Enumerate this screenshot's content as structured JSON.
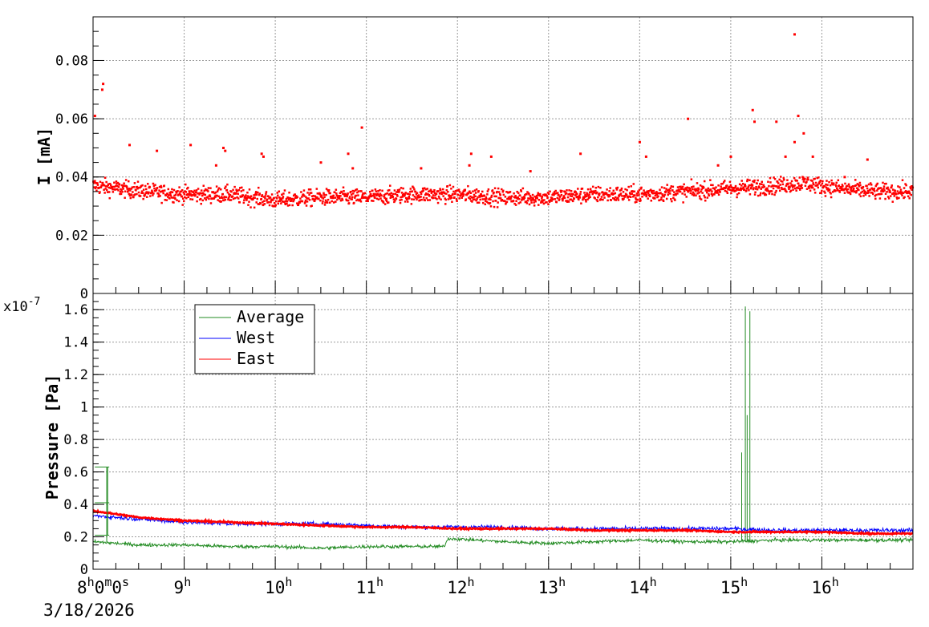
{
  "colors": {
    "current": "#ff0000",
    "average": "#228b22",
    "west": "#0000ff",
    "east": "#ff0000",
    "grid": "#9a9a9a",
    "frame": "#000000"
  },
  "chart_data": [
    {
      "id": "current",
      "type": "scatter",
      "ylabel": "I [mA]",
      "xlim": [
        8.0,
        17.0
      ],
      "ylim": [
        0,
        0.095
      ],
      "yticks": [
        0,
        0.02,
        0.04,
        0.06,
        0.08
      ],
      "ytick_labels": [
        "0",
        "0.02",
        "0.04",
        "0.06",
        "0.08"
      ],
      "grid": true,
      "baseline_points": [
        [
          8.0,
          0.037
        ],
        [
          8.3,
          0.036
        ],
        [
          8.6,
          0.035
        ],
        [
          9.0,
          0.034
        ],
        [
          9.5,
          0.034
        ],
        [
          10.0,
          0.032
        ],
        [
          10.5,
          0.033
        ],
        [
          11.0,
          0.033
        ],
        [
          11.5,
          0.034
        ],
        [
          12.0,
          0.034
        ],
        [
          12.5,
          0.033
        ],
        [
          13.0,
          0.033
        ],
        [
          13.5,
          0.034
        ],
        [
          14.0,
          0.034
        ],
        [
          14.5,
          0.035
        ],
        [
          15.0,
          0.036
        ],
        [
          15.5,
          0.037
        ],
        [
          15.8,
          0.038
        ],
        [
          16.2,
          0.036
        ],
        [
          16.6,
          0.035
        ],
        [
          17.0,
          0.035
        ]
      ],
      "outliers": [
        [
          8.02,
          0.061
        ],
        [
          8.1,
          0.07
        ],
        [
          8.11,
          0.072
        ],
        [
          8.4,
          0.051
        ],
        [
          8.7,
          0.049
        ],
        [
          9.07,
          0.051
        ],
        [
          9.35,
          0.044
        ],
        [
          9.43,
          0.05
        ],
        [
          9.45,
          0.049
        ],
        [
          9.85,
          0.048
        ],
        [
          9.87,
          0.047
        ],
        [
          10.5,
          0.045
        ],
        [
          10.8,
          0.048
        ],
        [
          10.85,
          0.043
        ],
        [
          10.95,
          0.057
        ],
        [
          11.6,
          0.043
        ],
        [
          12.15,
          0.048
        ],
        [
          12.13,
          0.044
        ],
        [
          12.37,
          0.047
        ],
        [
          12.8,
          0.042
        ],
        [
          13.35,
          0.048
        ],
        [
          14.0,
          0.052
        ],
        [
          14.07,
          0.047
        ],
        [
          14.53,
          0.06
        ],
        [
          14.86,
          0.044
        ],
        [
          15.0,
          0.047
        ],
        [
          15.24,
          0.063
        ],
        [
          15.26,
          0.059
        ],
        [
          15.5,
          0.059
        ],
        [
          15.6,
          0.047
        ],
        [
          15.7,
          0.089
        ],
        [
          15.7,
          0.052
        ],
        [
          15.74,
          0.061
        ],
        [
          15.8,
          0.055
        ],
        [
          15.9,
          0.047
        ],
        [
          16.5,
          0.046
        ],
        [
          16.25,
          0.04
        ]
      ]
    },
    {
      "id": "pressure",
      "type": "line",
      "ylabel": "Pressure [Pa]",
      "exponent_label": "x10",
      "exponent_power": "-7",
      "xlim": [
        8.0,
        17.0
      ],
      "ylim": [
        0,
        1.7
      ],
      "yticks": [
        0,
        0.2,
        0.4,
        0.6,
        0.8,
        1.0,
        1.2,
        1.4,
        1.6
      ],
      "ytick_labels": [
        "0",
        "0.2",
        "0.4",
        "0.6",
        "0.8",
        "1",
        "1.2",
        "1.4",
        "1.6"
      ],
      "grid": true,
      "legend_position": "top-left",
      "series": [
        {
          "name": "Average",
          "color": "#228b22",
          "points": [
            [
              8.0,
              0.17
            ],
            [
              8.5,
              0.15
            ],
            [
              9.0,
              0.15
            ],
            [
              9.5,
              0.14
            ],
            [
              10.0,
              0.14
            ],
            [
              10.5,
              0.13
            ],
            [
              11.0,
              0.14
            ],
            [
              11.5,
              0.14
            ],
            [
              11.85,
              0.14
            ],
            [
              11.9,
              0.19
            ],
            [
              12.5,
              0.17
            ],
            [
              13.0,
              0.16
            ],
            [
              13.5,
              0.17
            ],
            [
              14.0,
              0.18
            ],
            [
              14.5,
              0.17
            ],
            [
              15.0,
              0.17
            ],
            [
              15.5,
              0.18
            ],
            [
              16.0,
              0.18
            ],
            [
              16.5,
              0.18
            ],
            [
              17.0,
              0.18
            ]
          ],
          "spikes": [
            [
              8.15,
              0.63
            ],
            [
              15.12,
              0.72
            ],
            [
              15.16,
              1.62
            ],
            [
              15.18,
              0.95
            ],
            [
              15.21,
              1.59
            ]
          ]
        },
        {
          "name": "West",
          "color": "#0000ff",
          "points": [
            [
              8.0,
              0.33
            ],
            [
              8.5,
              0.31
            ],
            [
              9.0,
              0.29
            ],
            [
              9.5,
              0.28
            ],
            [
              10.0,
              0.28
            ],
            [
              10.5,
              0.28
            ],
            [
              11.0,
              0.27
            ],
            [
              11.5,
              0.26
            ],
            [
              12.0,
              0.26
            ],
            [
              12.5,
              0.26
            ],
            [
              13.0,
              0.25
            ],
            [
              13.5,
              0.25
            ],
            [
              14.0,
              0.25
            ],
            [
              14.5,
              0.25
            ],
            [
              15.0,
              0.25
            ],
            [
              15.5,
              0.24
            ],
            [
              16.0,
              0.24
            ],
            [
              16.5,
              0.24
            ],
            [
              17.0,
              0.24
            ]
          ]
        },
        {
          "name": "East",
          "color": "#ff0000",
          "points": [
            [
              8.0,
              0.36
            ],
            [
              8.5,
              0.32
            ],
            [
              9.0,
              0.3
            ],
            [
              9.5,
              0.29
            ],
            [
              10.0,
              0.28
            ],
            [
              10.5,
              0.27
            ],
            [
              11.0,
              0.26
            ],
            [
              11.5,
              0.26
            ],
            [
              12.0,
              0.25
            ],
            [
              12.5,
              0.25
            ],
            [
              13.0,
              0.25
            ],
            [
              13.5,
              0.24
            ],
            [
              14.0,
              0.24
            ],
            [
              14.5,
              0.24
            ],
            [
              15.0,
              0.23
            ],
            [
              15.5,
              0.23
            ],
            [
              16.0,
              0.23
            ],
            [
              16.5,
              0.22
            ],
            [
              17.0,
              0.22
            ]
          ]
        }
      ]
    }
  ],
  "x_axis": {
    "first_label": {
      "h": "8",
      "m": "0",
      "s": "0"
    },
    "hour_labels": [
      {
        "hour": 9,
        "text": "9"
      },
      {
        "hour": 10,
        "text": "10"
      },
      {
        "hour": 11,
        "text": "11"
      },
      {
        "hour": 12,
        "text": "12"
      },
      {
        "hour": 13,
        "text": "13"
      },
      {
        "hour": 14,
        "text": "14"
      },
      {
        "hour": 15,
        "text": "15"
      },
      {
        "hour": 16,
        "text": "16"
      }
    ],
    "hour_suffix": "h",
    "minute_suffix": "m",
    "second_suffix": "s",
    "date": "3/18/2026"
  }
}
